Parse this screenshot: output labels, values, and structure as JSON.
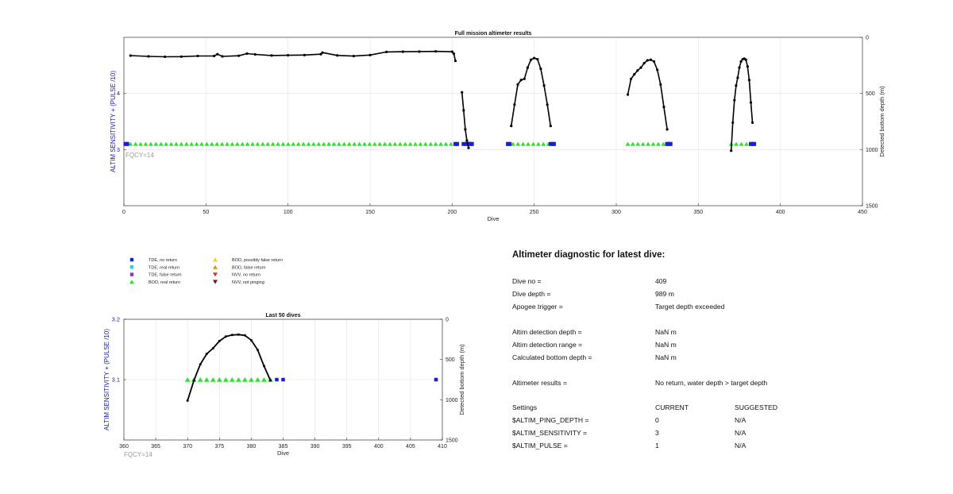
{
  "chart_data": [
    {
      "type": "line",
      "title": "Full mission altimeter results",
      "xlabel": "Dive",
      "ylabel_left": "ALTIM SENSITIVITY + (PULSE /10)",
      "ylabel_right": "Detected bottom depth (m)",
      "xlim": [
        0,
        450
      ],
      "ylim_left": [
        2,
        5
      ],
      "ylim_right": [
        1500,
        0
      ],
      "xticks": [
        "0",
        "50",
        "100",
        "150",
        "200",
        "250",
        "300",
        "350",
        "400",
        "450"
      ],
      "yticks_left": [
        "3",
        "4"
      ],
      "yticks_right": [
        "0",
        "500",
        "1000",
        "1500"
      ],
      "annotation": "FQCY=14",
      "grid": true,
      "series": [
        {
          "name": "Detected bottom depth",
          "axis": "right",
          "segments": [
            {
              "x": [
                4,
                15,
                25,
                35,
                45,
                55,
                57,
                60,
                70,
                75,
                80,
                90,
                100,
                110,
                120,
                121,
                130,
                140,
                150,
                160,
                170,
                180,
                190,
                200,
                201,
                202
              ],
              "y": [
                163,
                170,
                173,
                172,
                166,
                166,
                150,
                170,
                164,
                145,
                152,
                162,
                160,
                158,
                150,
                136,
                161,
                167,
                158,
                130,
                128,
                127,
                125,
                128,
                145,
                210
              ]
            },
            {
              "x": [
                206,
                207,
                208,
                209,
                210
              ],
              "y": [
                490,
                650,
                820,
                920,
                985
              ]
            },
            {
              "x": [
                236,
                238,
                240,
                242,
                244,
                246,
                248,
                250,
                252,
                254,
                256,
                258,
                260
              ],
              "y": [
                790,
                600,
                420,
                380,
                370,
                270,
                200,
                185,
                195,
                280,
                430,
                600,
                790
              ]
            },
            {
              "x": [
                307,
                309,
                311,
                313,
                315,
                317,
                319,
                321,
                323,
                325,
                327,
                329,
                331
              ],
              "y": [
                510,
                370,
                330,
                295,
                270,
                230,
                205,
                200,
                215,
                290,
                420,
                620,
                820
              ]
            },
            {
              "x": [
                370,
                371,
                372,
                373,
                374,
                375,
                376,
                377,
                378,
                379,
                380,
                381,
                382,
                383
              ],
              "y": [
                1010,
                760,
                560,
                430,
                360,
                270,
                215,
                195,
                190,
                200,
                260,
                380,
                580,
                760
              ]
            }
          ]
        },
        {
          "name": "BOD, real return",
          "axis": "left",
          "marker": "triangle",
          "color": "#33dd33",
          "segments": [
            {
              "x_start": 4,
              "x_end": 201,
              "y": 3.1
            },
            {
              "x_start": 237,
              "x_end": 259,
              "y": 3.1
            },
            {
              "x_start": 307,
              "x_end": 329,
              "y": 3.1
            },
            {
              "x_start": 370,
              "x_end": 381,
              "y": 3.1
            }
          ]
        },
        {
          "name": "TDE, no return",
          "axis": "left",
          "marker": "square",
          "color": "#1a1ae6",
          "points": [
            [
              1,
              3.1
            ],
            [
              2,
              3.1
            ],
            [
              202,
              3.1
            ],
            [
              203,
              3.1
            ],
            [
              207,
              3.1
            ],
            [
              209,
              3.1
            ],
            [
              210,
              3.1
            ],
            [
              211,
              3.1
            ],
            [
              212,
              3.1
            ],
            [
              234,
              3.1
            ],
            [
              235,
              3.1
            ],
            [
              260,
              3.1
            ],
            [
              261,
              3.1
            ],
            [
              262,
              3.1
            ],
            [
              331,
              3.1
            ],
            [
              332,
              3.1
            ],
            [
              333,
              3.1
            ],
            [
              382,
              3.1
            ],
            [
              383,
              3.1
            ],
            [
              384,
              3.1
            ]
          ]
        }
      ]
    },
    {
      "type": "line",
      "title": "Last 50 dives",
      "xlabel": "Dive",
      "ylabel_left": "ALTIM SENSITIVITY + (PULSE /10)",
      "ylabel_right": "Detected bottom depth (m)",
      "xlim": [
        360,
        410
      ],
      "ylim_left": [
        3.0,
        3.2
      ],
      "ylim_right": [
        1500,
        0
      ],
      "xticks": [
        "360",
        "365",
        "370",
        "375",
        "380",
        "385",
        "390",
        "395",
        "400",
        "405",
        "410"
      ],
      "yticks_left": [
        "3.1",
        "3.2"
      ],
      "yticks_right": [
        "0",
        "500",
        "1000",
        "1500"
      ],
      "annotation": "FQCY=14",
      "grid": true,
      "series": [
        {
          "name": "Detected bottom depth",
          "axis": "right",
          "x": [
            370,
            371,
            372,
            373,
            374,
            375,
            376,
            377,
            378,
            379,
            380,
            381,
            382,
            383
          ],
          "y": [
            1010,
            760,
            560,
            430,
            360,
            270,
            215,
            195,
            190,
            200,
            260,
            380,
            580,
            760
          ]
        },
        {
          "name": "BOD, real return",
          "axis": "left",
          "marker": "triangle",
          "color": "#33dd33",
          "x": [
            370,
            371,
            372,
            373,
            374,
            375,
            376,
            377,
            378,
            379,
            380,
            381,
            382,
            383
          ],
          "y": [
            3.1,
            3.1,
            3.1,
            3.1,
            3.1,
            3.1,
            3.1,
            3.1,
            3.1,
            3.1,
            3.1,
            3.1,
            3.1,
            3.1
          ]
        },
        {
          "name": "TDE, no return",
          "axis": "left",
          "marker": "square",
          "color": "#1a1ae6",
          "x": [
            384,
            385,
            409
          ],
          "y": [
            3.1,
            3.1,
            3.1
          ]
        }
      ]
    }
  ],
  "legend": {
    "col1": [
      {
        "label": "TDE, no return",
        "marker": "square",
        "color": "#1a1ae6"
      },
      {
        "label": "TDE, real return",
        "marker": "square",
        "color": "#33cccc"
      },
      {
        "label": "TDE, false return",
        "marker": "square",
        "color": "#8833cc"
      },
      {
        "label": "BOD, real return",
        "marker": "triangle-up",
        "color": "#33dd33"
      }
    ],
    "col2": [
      {
        "label": "BOD, possibly false return",
        "marker": "triangle-up",
        "color": "#f0d020"
      },
      {
        "label": "BOD, false return",
        "marker": "triangle-up",
        "color": "#f08c10"
      },
      {
        "label": "NVV, no return",
        "marker": "triangle-down",
        "color": "#e03010"
      },
      {
        "label": "NVV, not pinging",
        "marker": "triangle-down",
        "color": "#7a1010"
      }
    ]
  },
  "diagnostic": {
    "title": "Altimeter diagnostic for latest dive:",
    "rows": [
      {
        "label": "Dive no =",
        "value": "409"
      },
      {
        "label": "Dive depth =",
        "value": "989 m"
      },
      {
        "label": "Apogee trigger =",
        "value": "Target depth exceeded"
      },
      {
        "label": "Altim detection depth =",
        "value": "NaN m"
      },
      {
        "label": "Altim detection range =",
        "value": "NaN m"
      },
      {
        "label": "Calculated bottom depth =",
        "value": "NaN m"
      },
      {
        "label": "Altimeter results =",
        "value": "No return, water depth > target depth"
      }
    ],
    "settings_header": {
      "label": "Settings",
      "current": "CURRENT",
      "suggested": "SUGGESTED"
    },
    "settings": [
      {
        "label": "$ALTIM_PING_DEPTH =",
        "current": "0",
        "suggested": "N/A"
      },
      {
        "label": "$ALTIM_SENSITIVITY =",
        "current": "3",
        "suggested": "N/A"
      },
      {
        "label": "$ALTIM_PULSE =",
        "current": "1",
        "suggested": "N/A"
      }
    ]
  }
}
